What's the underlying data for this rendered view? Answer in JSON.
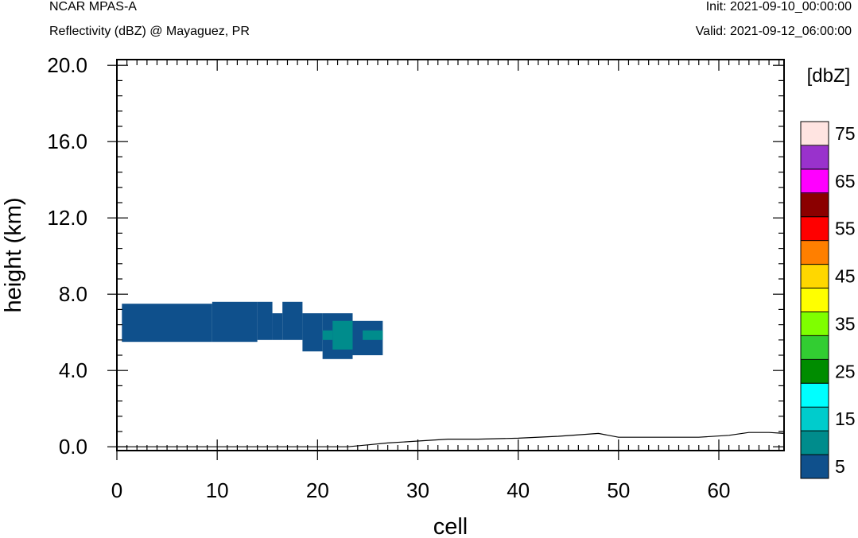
{
  "header": {
    "model": "NCAR MPAS-A",
    "subtitle": "Reflectivity (dBZ) @ Mayaguez, PR",
    "init": "Init: 2021-09-10_00:00:00",
    "valid": "Valid: 2021-09-12_06:00:00"
  },
  "chart_data": {
    "type": "heatmap",
    "xlabel": "cell",
    "ylabel": "height (km)",
    "xlim": [
      0,
      66.5
    ],
    "ylim": [
      -0.2,
      20.3
    ],
    "x_ticks": [
      0,
      10,
      20,
      30,
      40,
      50,
      60
    ],
    "x_tick_labels": [
      "0",
      "10",
      "20",
      "30",
      "40",
      "50",
      "60"
    ],
    "y_ticks": [
      0,
      4,
      8,
      12,
      16,
      20
    ],
    "y_tick_labels": [
      "0.0",
      "4.0",
      "8.0",
      "12.0",
      "16.0",
      "20.0"
    ],
    "colorbar": {
      "unit_label": "[dbZ]",
      "levels": [
        5,
        10,
        15,
        20,
        25,
        30,
        35,
        40,
        45,
        50,
        55,
        60,
        65,
        70,
        75
      ],
      "colors": [
        "#0f508c",
        "#008c8c",
        "#00cccc",
        "#00ffff",
        "#008c00",
        "#32cd32",
        "#7fff00",
        "#ffff00",
        "#ffd700",
        "#ff7f00",
        "#ff0000",
        "#8b0000",
        "#ff00ff",
        "#9932cc",
        "#ffe4e1"
      ],
      "tick_labels": [
        "5",
        "15",
        "25",
        "35",
        "45",
        "55",
        "65",
        "75"
      ]
    },
    "cells": [
      {
        "x0": 0.5,
        "x1": 9.5,
        "y0": 5.5,
        "y1": 7.5,
        "level": 5
      },
      {
        "x0": 9.5,
        "x1": 14.0,
        "y0": 5.5,
        "y1": 7.6,
        "level": 5
      },
      {
        "x0": 14.0,
        "x1": 15.5,
        "y0": 5.6,
        "y1": 7.6,
        "level": 5
      },
      {
        "x0": 15.5,
        "x1": 16.5,
        "y0": 5.6,
        "y1": 7.0,
        "level": 5
      },
      {
        "x0": 16.5,
        "x1": 18.5,
        "y0": 5.6,
        "y1": 7.6,
        "level": 5
      },
      {
        "x0": 18.5,
        "x1": 20.5,
        "y0": 5.0,
        "y1": 7.0,
        "level": 5
      },
      {
        "x0": 20.5,
        "x1": 23.5,
        "y0": 4.6,
        "y1": 7.0,
        "level": 5
      },
      {
        "x0": 23.5,
        "x1": 26.5,
        "y0": 4.8,
        "y1": 6.6,
        "level": 5
      },
      {
        "x0": 20.5,
        "x1": 21.5,
        "y0": 5.6,
        "y1": 6.1,
        "level": 10
      },
      {
        "x0": 21.5,
        "x1": 23.5,
        "y0": 5.1,
        "y1": 6.6,
        "level": 10
      },
      {
        "x0": 24.5,
        "x1": 26.5,
        "y0": 5.6,
        "y1": 6.1,
        "level": 10
      }
    ],
    "terrain": {
      "x": [
        0,
        23,
        25,
        27,
        30,
        33,
        36,
        40,
        44,
        48,
        50,
        52,
        55,
        58,
        61,
        63,
        65,
        66.5
      ],
      "y": [
        0,
        0,
        0.1,
        0.2,
        0.3,
        0.4,
        0.4,
        0.45,
        0.55,
        0.7,
        0.5,
        0.5,
        0.5,
        0.5,
        0.6,
        0.75,
        0.75,
        0.7
      ]
    }
  }
}
